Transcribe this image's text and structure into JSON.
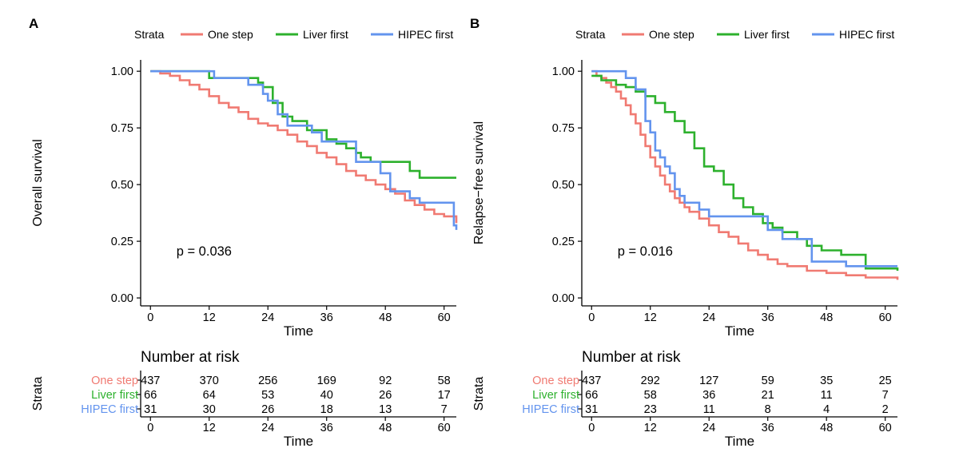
{
  "figure": {
    "legend_title": "Strata",
    "colors": {
      "one_step": "#F07A72",
      "liver_first": "#2DB12D",
      "hipec_first": "#6394EE"
    }
  },
  "chart_data": [
    {
      "panel_label": "A",
      "type": "line",
      "step": true,
      "title": "",
      "xlabel": "Time",
      "ylabel": "Overall survival",
      "xlim": [
        -2,
        62.5
      ],
      "ylim": [
        -0.035,
        1.05
      ],
      "xticks": [
        "0",
        "12",
        "24",
        "36",
        "48",
        "60"
      ],
      "yticks": [
        "0.00",
        "0.25",
        "0.50",
        "0.75",
        "1.00"
      ],
      "legend": [
        "One step",
        "Liver first",
        "HIPEC first"
      ],
      "annotation": "p = 0.036",
      "series": [
        {
          "name": "One step",
          "color": "#F07A72",
          "x": [
            0,
            2,
            4,
            6,
            8,
            10,
            12,
            14,
            16,
            18,
            20,
            22,
            24,
            26,
            28,
            30,
            32,
            34,
            36,
            38,
            40,
            42,
            44,
            46,
            48,
            50,
            52,
            54,
            56,
            58,
            60,
            62.5
          ],
          "y": [
            1.0,
            0.99,
            0.98,
            0.96,
            0.94,
            0.92,
            0.89,
            0.86,
            0.84,
            0.82,
            0.79,
            0.77,
            0.76,
            0.74,
            0.72,
            0.69,
            0.67,
            0.64,
            0.62,
            0.59,
            0.56,
            0.54,
            0.52,
            0.5,
            0.48,
            0.46,
            0.43,
            0.41,
            0.39,
            0.37,
            0.36,
            0.33
          ]
        },
        {
          "name": "Liver first",
          "color": "#2DB12D",
          "x": [
            0,
            12,
            16,
            17,
            22,
            23,
            25,
            27,
            29,
            32,
            36,
            38,
            40,
            42,
            43,
            45,
            49,
            53,
            55,
            56,
            62.5
          ],
          "y": [
            1.0,
            0.97,
            0.97,
            0.97,
            0.95,
            0.93,
            0.86,
            0.8,
            0.78,
            0.74,
            0.7,
            0.68,
            0.66,
            0.64,
            0.62,
            0.6,
            0.6,
            0.56,
            0.53,
            0.53,
            0.53
          ]
        },
        {
          "name": "HIPEC first",
          "color": "#6394EE",
          "x": [
            0,
            13,
            20,
            23,
            24,
            26,
            28,
            33,
            35,
            42,
            47,
            49,
            53,
            55,
            62,
            62.5
          ],
          "y": [
            1.0,
            0.97,
            0.94,
            0.9,
            0.87,
            0.81,
            0.76,
            0.73,
            0.69,
            0.6,
            0.55,
            0.47,
            0.44,
            0.42,
            0.32,
            0.3
          ]
        }
      ],
      "risk_table": {
        "title": "Number at risk",
        "strata_label": "Strata",
        "xlabel": "Time",
        "times": [
          "0",
          "12",
          "24",
          "36",
          "48",
          "60"
        ],
        "rows": [
          {
            "label": "One step",
            "color": "#F07A72",
            "values": [
              "437",
              "370",
              "256",
              "169",
              "92",
              "58"
            ]
          },
          {
            "label": "Liver first",
            "color": "#2DB12D",
            "values": [
              "66",
              "64",
              "53",
              "40",
              "26",
              "17"
            ]
          },
          {
            "label": "HIPEC first",
            "color": "#6394EE",
            "values": [
              "31",
              "30",
              "26",
              "18",
              "13",
              "7"
            ]
          }
        ]
      }
    },
    {
      "panel_label": "B",
      "type": "line",
      "step": true,
      "title": "",
      "xlabel": "Time",
      "ylabel": "Relapse−free survival",
      "xlim": [
        -2,
        62.5
      ],
      "ylim": [
        -0.035,
        1.05
      ],
      "xticks": [
        "0",
        "12",
        "24",
        "36",
        "48",
        "60"
      ],
      "yticks": [
        "0.00",
        "0.25",
        "0.50",
        "0.75",
        "1.00"
      ],
      "legend": [
        "One step",
        "Liver first",
        "HIPEC first"
      ],
      "annotation": "p = 0.016",
      "series": [
        {
          "name": "One step",
          "color": "#F07A72",
          "x": [
            0,
            1,
            2,
            3,
            4,
            5,
            6,
            7,
            8,
            9,
            10,
            11,
            12,
            13,
            14,
            15,
            16,
            17,
            18,
            19,
            20,
            22,
            24,
            26,
            28,
            30,
            32,
            34,
            36,
            38,
            40,
            44,
            48,
            52,
            56,
            60,
            62.5
          ],
          "y": [
            1.0,
            0.98,
            0.97,
            0.95,
            0.93,
            0.91,
            0.88,
            0.85,
            0.81,
            0.77,
            0.72,
            0.67,
            0.62,
            0.58,
            0.54,
            0.5,
            0.47,
            0.44,
            0.42,
            0.4,
            0.38,
            0.35,
            0.32,
            0.29,
            0.27,
            0.24,
            0.21,
            0.19,
            0.17,
            0.15,
            0.14,
            0.12,
            0.11,
            0.1,
            0.09,
            0.09,
            0.08
          ]
        },
        {
          "name": "Liver first",
          "color": "#2DB12D",
          "x": [
            0,
            2,
            5,
            7,
            9,
            11,
            13,
            15,
            17,
            19,
            21,
            23,
            25,
            27,
            29,
            31,
            33,
            35,
            37,
            39,
            42,
            44,
            47,
            51,
            56,
            62.5
          ],
          "y": [
            0.98,
            0.96,
            0.94,
            0.93,
            0.91,
            0.89,
            0.86,
            0.82,
            0.78,
            0.73,
            0.66,
            0.58,
            0.56,
            0.5,
            0.44,
            0.4,
            0.37,
            0.33,
            0.31,
            0.29,
            0.26,
            0.23,
            0.21,
            0.19,
            0.13,
            0.12
          ]
        },
        {
          "name": "HIPEC first",
          "color": "#6394EE",
          "x": [
            0,
            5,
            7,
            9,
            11,
            12,
            13,
            14,
            15,
            16,
            17,
            18,
            19,
            20,
            22,
            24,
            34,
            36,
            39,
            45,
            52,
            62.5
          ],
          "y": [
            1.0,
            1.0,
            0.97,
            0.92,
            0.78,
            0.73,
            0.65,
            0.62,
            0.58,
            0.55,
            0.48,
            0.45,
            0.42,
            0.42,
            0.39,
            0.36,
            0.36,
            0.3,
            0.26,
            0.16,
            0.14,
            0.14
          ]
        }
      ],
      "risk_table": {
        "title": "Number at risk",
        "strata_label": "Strata",
        "xlabel": "Time",
        "times": [
          "0",
          "12",
          "24",
          "36",
          "48",
          "60"
        ],
        "rows": [
          {
            "label": "One step",
            "color": "#F07A72",
            "values": [
              "437",
              "292",
              "127",
              "59",
              "35",
              "25"
            ]
          },
          {
            "label": "Liver first",
            "color": "#2DB12D",
            "values": [
              "66",
              "58",
              "36",
              "21",
              "11",
              "7"
            ]
          },
          {
            "label": "HIPEC first",
            "color": "#6394EE",
            "values": [
              "31",
              "23",
              "11",
              "8",
              "4",
              "2"
            ]
          }
        ]
      }
    }
  ]
}
